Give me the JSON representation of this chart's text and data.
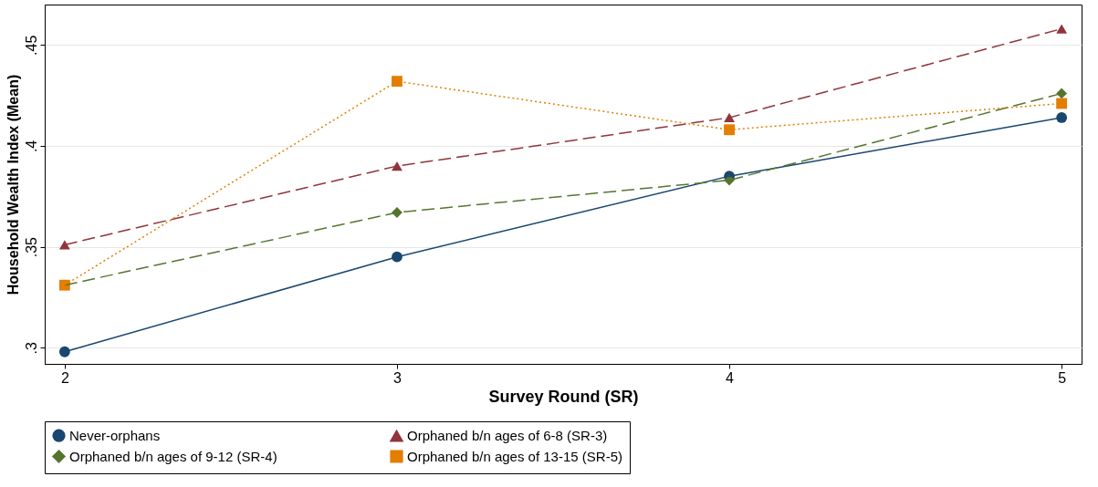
{
  "chart_data": {
    "type": "line",
    "xlabel": "Survey Round (SR)",
    "ylabel": "Household Wealth Index (Mean)",
    "x": [
      2,
      3,
      4,
      5
    ],
    "series": [
      {
        "name": "Never-orphans",
        "color": "#1a476f",
        "marker": "circle",
        "line_style": "solid",
        "values": [
          0.298,
          0.345,
          0.385,
          0.414
        ]
      },
      {
        "name": "Orphaned b/n ages of 6-8 (SR-3)",
        "color": "#90353b",
        "marker": "triangle",
        "line_style": "dashed",
        "values": [
          0.351,
          0.39,
          0.414,
          0.458
        ]
      },
      {
        "name": "Orphaned b/n ages of 9-12 (SR-4)",
        "color": "#55752f",
        "marker": "diamond",
        "line_style": "dashed",
        "values": [
          0.331,
          0.367,
          0.383,
          0.426
        ]
      },
      {
        "name": "Orphaned b/n ages of 13-15 (SR-5)",
        "color": "#e37e00",
        "marker": "square",
        "line_style": "dotted",
        "values": [
          0.331,
          0.432,
          0.408,
          0.421
        ]
      }
    ],
    "xlim": [
      1.94,
      5.06
    ],
    "xticks": [
      2,
      3,
      4,
      5
    ],
    "ylim": [
      0.292,
      0.47
    ],
    "yticks": [
      {
        "value": 0.3,
        "label": ".3"
      },
      {
        "value": 0.35,
        "label": ".35"
      },
      {
        "value": 0.4,
        "label": ".4"
      },
      {
        "value": 0.45,
        "label": ".45"
      }
    ],
    "grid": "y",
    "legend": "bottom"
  }
}
